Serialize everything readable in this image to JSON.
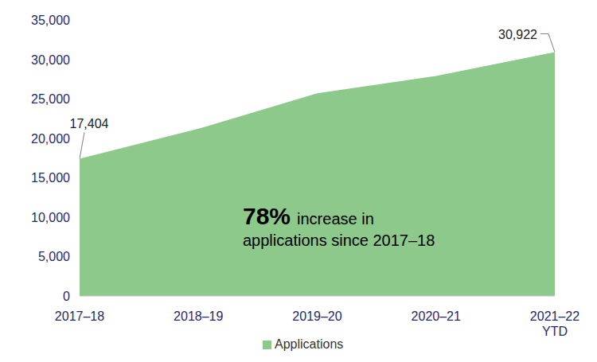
{
  "chart_data": {
    "type": "area",
    "categories": [
      "2017–18",
      "2018–19",
      "2019–20",
      "2020–21",
      "2021–22 YTD"
    ],
    "series": [
      {
        "name": "Applications",
        "color": "#8cc98a",
        "values": [
          17404,
          21200,
          25700,
          27900,
          30922
        ],
        "value_labels": [
          "17,404",
          null,
          null,
          null,
          "30,922"
        ]
      }
    ],
    "ylim": [
      0,
      35000
    ],
    "yticks": [
      0,
      {
        "value": 5000,
        "label": "5,000"
      },
      {
        "value": 10000,
        "label": "10,000"
      },
      {
        "value": 15000,
        "label": "15,000"
      },
      {
        "value": 20000,
        "label": "20,000"
      },
      {
        "value": 25000,
        "label": "25,000"
      },
      {
        "value": 30000,
        "label": "30,000"
      },
      {
        "value": 35000,
        "label": "35,000"
      }
    ],
    "annotations": [
      "78%",
      "increase in",
      "applications since 2017–18"
    ],
    "legend": "bottom",
    "grid": false,
    "data_labels": true
  }
}
